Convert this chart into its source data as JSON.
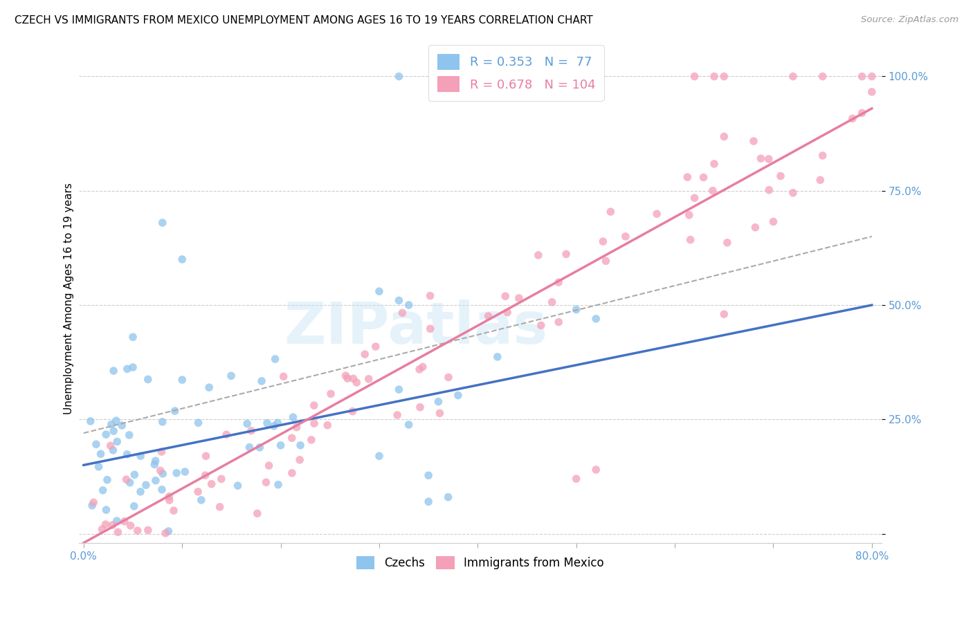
{
  "title": "CZECH VS IMMIGRANTS FROM MEXICO UNEMPLOYMENT AMONG AGES 16 TO 19 YEARS CORRELATION CHART",
  "source": "Source: ZipAtlas.com",
  "ylabel": "Unemployment Among Ages 16 to 19 years",
  "legend_label1": "Czechs",
  "legend_label2": "Immigrants from Mexico",
  "legend_r1": "R = 0.353",
  "legend_n1": "N =  77",
  "legend_r2": "R = 0.678",
  "legend_n2": "N = 104",
  "color_czech": "#8EC4ED",
  "color_mexico": "#F4A0B8",
  "color_blue_text": "#5B9BD5",
  "color_pink_line": "#E87DA0",
  "color_blue_line": "#4472C4",
  "color_dashed": "#AAAAAA",
  "watermark": "ZIPatlas",
  "xmin": 0.0,
  "xmax": 0.8,
  "ymin": -0.02,
  "ymax": 1.05,
  "czech_line_x0": 0.0,
  "czech_line_y0": 0.15,
  "czech_line_x1": 0.8,
  "czech_line_y1": 0.5,
  "mexico_line_x0": 0.0,
  "mexico_line_y0": -0.02,
  "mexico_line_x1": 0.8,
  "mexico_line_y1": 0.93,
  "dash_line_x0": 0.0,
  "dash_line_y0": 0.22,
  "dash_line_x1": 0.8,
  "dash_line_y1": 0.65,
  "yticks": [
    0.0,
    0.25,
    0.5,
    0.75,
    1.0
  ],
  "ytick_labels": [
    "",
    "25.0%",
    "50.0%",
    "75.0%",
    "100.0%"
  ],
  "seed": 42
}
